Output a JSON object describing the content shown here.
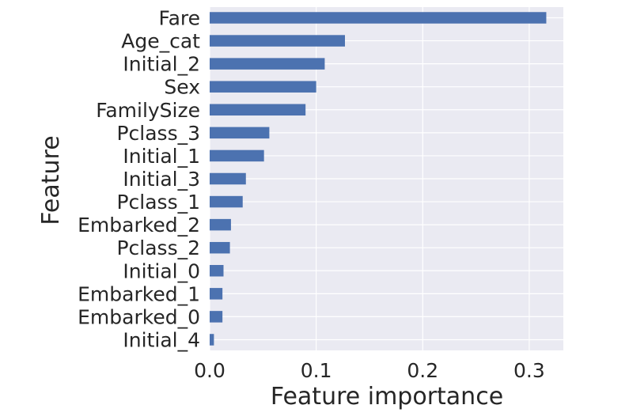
{
  "chart_data": {
    "type": "bar",
    "orientation": "horizontal",
    "title": "",
    "xlabel": "Feature importance",
    "ylabel": "Feature",
    "xlim": [
      0,
      0.332
    ],
    "xticks": [
      "0.0",
      "0.1",
      "0.2",
      "0.3"
    ],
    "xtick_values": [
      0,
      0.1,
      0.2,
      0.3
    ],
    "grid": true,
    "colors": {
      "bar": "#4c72b0",
      "plot_bg": "#eaeaf2",
      "grid": "#ffffff",
      "text": "#262626"
    },
    "categories": [
      "Fare",
      "Age_cat",
      "Initial_2",
      "Sex",
      "FamilySize",
      "Pclass_3",
      "Initial_1",
      "Initial_3",
      "Pclass_1",
      "Embarked_2",
      "Pclass_2",
      "Initial_0",
      "Embarked_1",
      "Embarked_0",
      "Initial_4"
    ],
    "values": [
      0.316,
      0.127,
      0.108,
      0.1,
      0.09,
      0.056,
      0.051,
      0.034,
      0.031,
      0.02,
      0.019,
      0.013,
      0.012,
      0.012,
      0.004
    ]
  }
}
